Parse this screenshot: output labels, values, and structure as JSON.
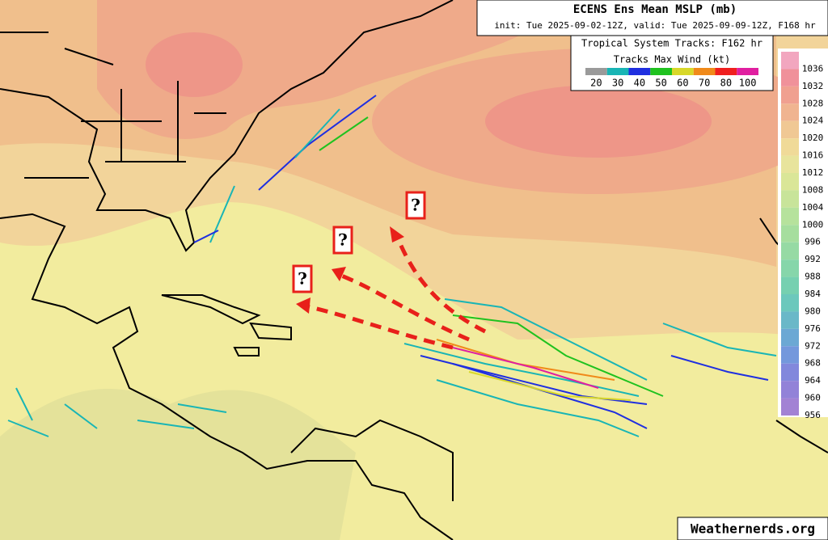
{
  "header": {
    "title": "ECENS Ens Mean MSLP (mb)",
    "subtitle": "init: Tue 2025-09-02-12Z, valid: Tue 2025-09-09-12Z, F168 hr"
  },
  "legend": {
    "title": "Tropical System Tracks: F162 hr",
    "subtitle": "Tracks Max Wind (kt)",
    "wind_speeds": [
      20,
      30,
      40,
      50,
      60,
      70,
      80,
      100
    ],
    "colors": [
      "#9a9a9a",
      "#19b5b5",
      "#1f2fe0",
      "#1fc21f",
      "#d8d82a",
      "#f08a1a",
      "#f01f1f",
      "#e01fa0"
    ]
  },
  "colorbar": {
    "levels": [
      1036,
      1032,
      1028,
      1024,
      1020,
      1016,
      1012,
      1008,
      1004,
      1000,
      996,
      992,
      988,
      984,
      980,
      976,
      972,
      968,
      964,
      960,
      956
    ],
    "colors": [
      "#f2a6bf",
      "#f0919a",
      "#f0a090",
      "#f0b490",
      "#f0c894",
      "#f0da98",
      "#e8e49c",
      "#dae698",
      "#c8e49a",
      "#b6e29c",
      "#a6de9e",
      "#96daa4",
      "#86d6aa",
      "#76d0b0",
      "#6cc8bc",
      "#6ab8c8",
      "#6ca8d4",
      "#7498dc",
      "#8288dc",
      "#9282d8",
      "#a282d4"
    ]
  },
  "annotations": [
    "?",
    "?",
    "?"
  ],
  "credit": "Weathernerds.org"
}
